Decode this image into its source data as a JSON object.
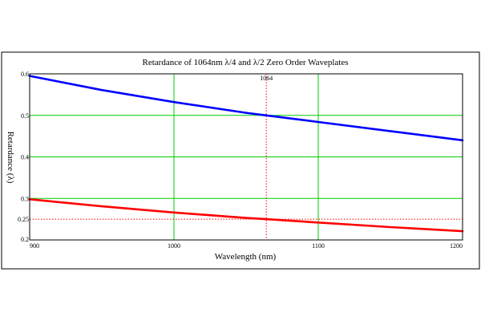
{
  "chart_data": {
    "type": "line",
    "title": "Retardance of 1064nm λ/4 and λ/2 Zero Order Waveplates",
    "xlabel": "Wavelength (nm)",
    "ylabel": "Retardance (λ)",
    "xlim": [
      900,
      1200
    ],
    "ylim": [
      0.2,
      0.6
    ],
    "x_ticks": [
      900,
      1000,
      1100,
      1200
    ],
    "y_ticks": [
      0.2,
      0.25,
      0.3,
      0.4,
      0.5,
      0.6
    ],
    "x_tick_labels": [
      "900",
      "1000",
      "1100",
      "1200"
    ],
    "y_tick_labels": [
      "0.2",
      "0.25",
      "0.3",
      "0.4",
      "0.5",
      "0.6"
    ],
    "grid_x": [
      1000,
      1100
    ],
    "grid_y": [
      0.3,
      0.4,
      0.5
    ],
    "grid": true,
    "grid_color": "#00cc00",
    "series": [
      {
        "color": "#0000ff",
        "x": [
          900,
          950,
          1000,
          1050,
          1064,
          1100,
          1150,
          1200
        ],
        "y": [
          0.595,
          0.561,
          0.532,
          0.506,
          0.5,
          0.484,
          0.462,
          0.44
        ]
      },
      {
        "color": "#ff0000",
        "x": [
          900,
          950,
          1000,
          1050,
          1064,
          1100,
          1150,
          1200
        ],
        "y": [
          0.298,
          0.281,
          0.266,
          0.253,
          0.25,
          0.242,
          0.231,
          0.221
        ]
      }
    ],
    "reference_lines": [
      {
        "axis": "x",
        "value": 1064,
        "label": "1064",
        "color": "#ff0000",
        "style": "dotted"
      },
      {
        "axis": "y",
        "value": 0.25,
        "color": "#ff0000",
        "style": "dotted"
      }
    ]
  }
}
